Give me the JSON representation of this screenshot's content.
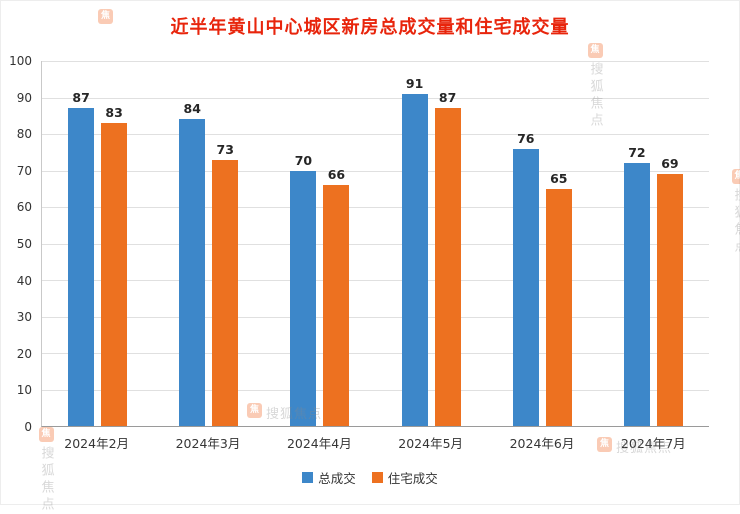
{
  "chart_data": {
    "type": "bar",
    "title": "近半年黄山中心城区新房总成交量和住宅成交量",
    "categories": [
      "2024年2月",
      "2024年3月",
      "2024年4月",
      "2024年5月",
      "2024年6月",
      "2024年7月"
    ],
    "series": [
      {
        "name": "总成交",
        "color": "#3d87c9",
        "values": [
          87,
          84,
          70,
          91,
          76,
          72
        ]
      },
      {
        "name": "住宅成交",
        "color": "#ed7120",
        "values": [
          83,
          73,
          66,
          87,
          65,
          69
        ]
      }
    ],
    "ylim": [
      0,
      100
    ],
    "ytick_step": 10,
    "grid": true,
    "legend_position": "bottom"
  },
  "colors": {
    "title": "#e8250c",
    "grid": "#e0e0e0",
    "axis_text": "#333333",
    "value_label": "#262626"
  },
  "watermark": {
    "text": "搜狐焦点",
    "icon_glyph": "焦"
  }
}
